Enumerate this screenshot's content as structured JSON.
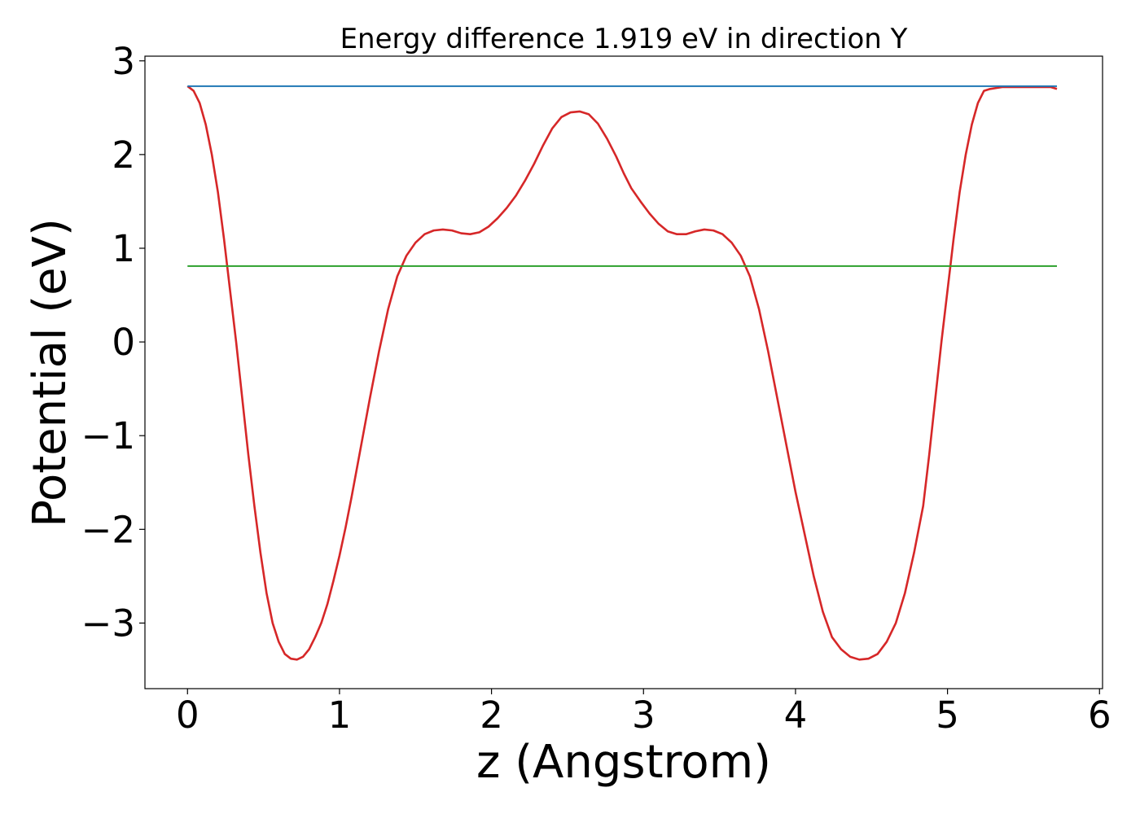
{
  "chart_data": {
    "type": "line",
    "title": "Energy difference 1.919 eV in direction Y",
    "xlabel": "z (Angstrom)",
    "ylabel": "Potential (eV)",
    "xlim": [
      -0.28,
      6.02
    ],
    "ylim": [
      -3.7,
      3.05
    ],
    "xticks": [
      0,
      1,
      2,
      3,
      4,
      5,
      6
    ],
    "xtick_labels": [
      "0",
      "1",
      "2",
      "3",
      "4",
      "5",
      "6"
    ],
    "yticks": [
      3,
      2,
      1,
      0,
      -1,
      -2,
      -3
    ],
    "ytick_labels": [
      "3",
      "2",
      "1",
      "0",
      "−1",
      "−2",
      "−3"
    ],
    "grid": false,
    "series": [
      {
        "color": "#d62728",
        "x": [
          0,
          0.04,
          0.08,
          0.12,
          0.16,
          0.2,
          0.24,
          0.28,
          0.32,
          0.36,
          0.4,
          0.44,
          0.48,
          0.52,
          0.56,
          0.6,
          0.64,
          0.68,
          0.72,
          0.76,
          0.8,
          0.84,
          0.88,
          0.92,
          0.96,
          1.0,
          1.04,
          1.08,
          1.12,
          1.16,
          1.2,
          1.26,
          1.32,
          1.38,
          1.44,
          1.5,
          1.56,
          1.62,
          1.68,
          1.74,
          1.8,
          1.86,
          1.92,
          1.98,
          2.04,
          2.1,
          2.16,
          2.22,
          2.28,
          2.34,
          2.4,
          2.46,
          2.52,
          2.58,
          2.64,
          2.7,
          2.76,
          2.82,
          2.87,
          2.92,
          2.98,
          3.04,
          3.1,
          3.16,
          3.22,
          3.28,
          3.34,
          3.4,
          3.46,
          3.52,
          3.58,
          3.64,
          3.7,
          3.76,
          3.82,
          3.88,
          3.94,
          4.0,
          4.06,
          4.12,
          4.18,
          4.24,
          4.3,
          4.36,
          4.42,
          4.48,
          4.54,
          4.6,
          4.66,
          4.72,
          4.78,
          4.84,
          4.88,
          4.92,
          4.96,
          5.0,
          5.04,
          5.08,
          5.12,
          5.16,
          5.2,
          5.24,
          5.28,
          5.32,
          5.36,
          5.4,
          5.44,
          5.48,
          5.52,
          5.56,
          5.6,
          5.64,
          5.68,
          5.72
        ],
        "y": [
          2.73,
          2.68,
          2.55,
          2.32,
          2.0,
          1.6,
          1.1,
          0.55,
          0.0,
          -0.6,
          -1.2,
          -1.75,
          -2.25,
          -2.68,
          -3.0,
          -3.2,
          -3.33,
          -3.38,
          -3.39,
          -3.36,
          -3.28,
          -3.15,
          -3.0,
          -2.8,
          -2.55,
          -2.28,
          -1.98,
          -1.65,
          -1.3,
          -0.95,
          -0.6,
          -0.1,
          0.35,
          0.7,
          0.92,
          1.06,
          1.15,
          1.19,
          1.2,
          1.19,
          1.16,
          1.15,
          1.17,
          1.23,
          1.32,
          1.43,
          1.56,
          1.72,
          1.9,
          2.1,
          2.28,
          2.4,
          2.45,
          2.46,
          2.43,
          2.33,
          2.17,
          1.98,
          1.8,
          1.64,
          1.5,
          1.37,
          1.26,
          1.18,
          1.15,
          1.15,
          1.18,
          1.2,
          1.19,
          1.15,
          1.06,
          0.92,
          0.7,
          0.35,
          -0.1,
          -0.6,
          -1.1,
          -1.6,
          -2.05,
          -2.5,
          -2.88,
          -3.15,
          -3.28,
          -3.36,
          -3.39,
          -3.38,
          -3.33,
          -3.2,
          -3.0,
          -2.68,
          -2.25,
          -1.75,
          -1.2,
          -0.6,
          0.0,
          0.55,
          1.1,
          1.6,
          2.0,
          2.32,
          2.55,
          2.68,
          2.7,
          2.71,
          2.72,
          2.72,
          2.72,
          2.72,
          2.72,
          2.72,
          2.72,
          2.72,
          2.72,
          2.7
        ]
      },
      {
        "color": "#1f77b4",
        "x": [
          0,
          5.72
        ],
        "y": [
          2.73,
          2.73
        ]
      },
      {
        "color": "#2ca02c",
        "x": [
          0,
          5.72
        ],
        "y": [
          0.81,
          0.81
        ]
      }
    ]
  }
}
